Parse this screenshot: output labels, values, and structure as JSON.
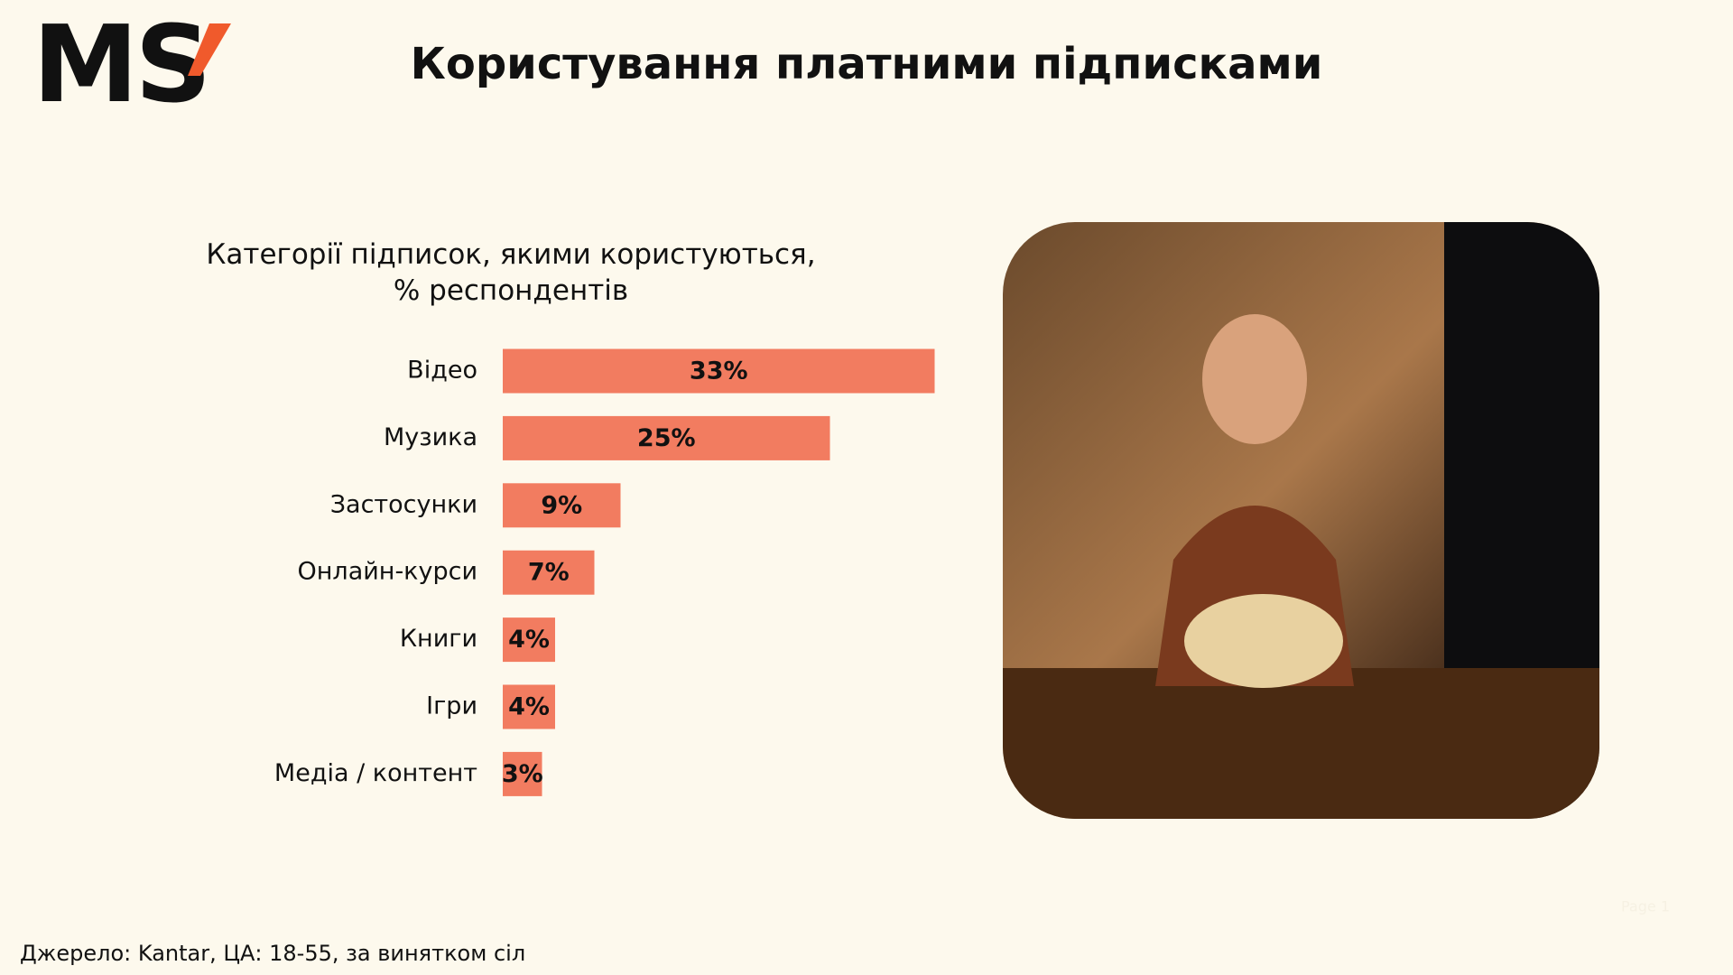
{
  "header": {
    "logo": "MS",
    "title": "Користування платними підписками"
  },
  "chart_data": {
    "type": "bar",
    "orientation": "horizontal",
    "title": "Категорії підписок, якими користуються, % респондентів",
    "categories": [
      "Відео",
      "Музика",
      "Застосунки",
      "Онлайн-курси",
      "Книги",
      "Ігри",
      "Медіа / контент"
    ],
    "values": [
      33,
      25,
      9,
      7,
      4,
      4,
      3
    ],
    "value_labels": [
      "33%",
      "25%",
      "9%",
      "7%",
      "4%",
      "4%",
      "3%"
    ],
    "color": "#f27c60"
  },
  "footer": {
    "source": "Джерело: Kantar, ЦА: 18-55, за винятком сіл",
    "page": "Page 1"
  }
}
